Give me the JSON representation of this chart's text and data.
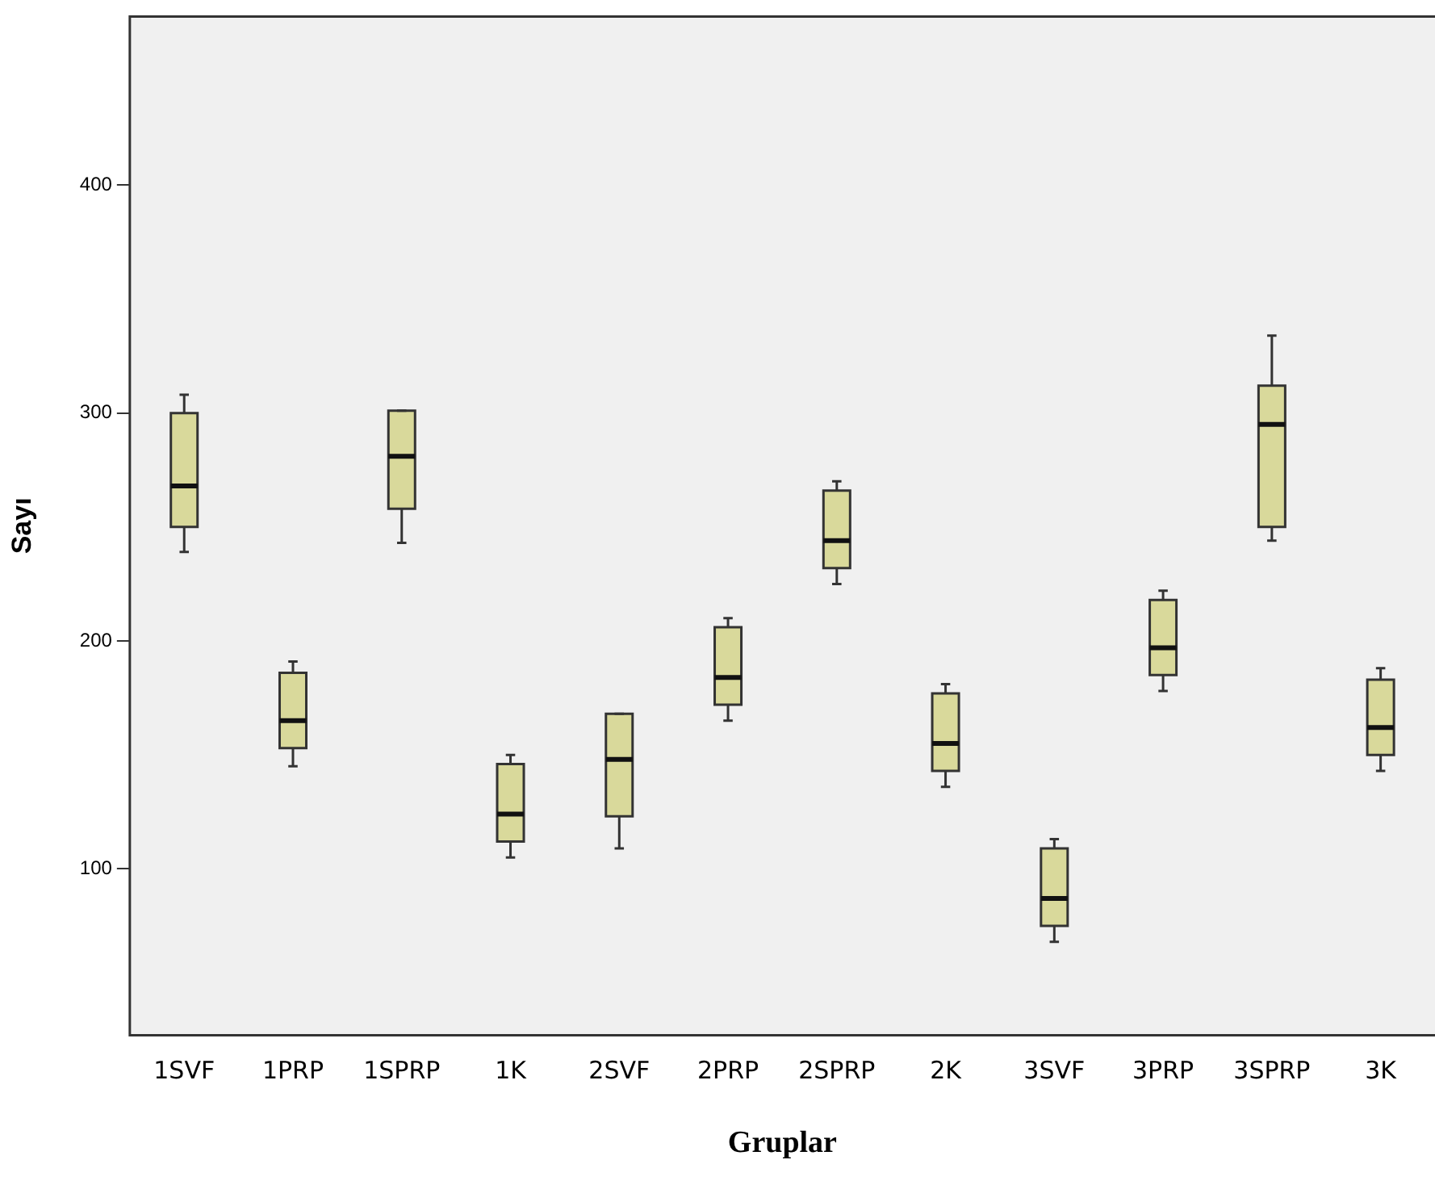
{
  "chart_data": {
    "type": "box",
    "xlabel": "Gruplar",
    "ylabel": "Sayı",
    "categories": [
      "1SVF",
      "1PRP",
      "1SPRP",
      "1K",
      "2SVF",
      "2PRP",
      "2SPRP",
      "2K",
      "3SVF",
      "3PRP",
      "3SPRP",
      "3K"
    ],
    "series": [
      {
        "color": "#d9d99b",
        "boxes": [
          {
            "low": 239,
            "q1": 250,
            "median": 268,
            "q3": 300,
            "high": 308
          },
          {
            "low": 145,
            "q1": 153,
            "median": 165,
            "q3": 186,
            "high": 191
          },
          {
            "low": 243,
            "q1": 258,
            "median": 281,
            "q3": 301,
            "high": 301
          },
          {
            "low": 105,
            "q1": 112,
            "median": 124,
            "q3": 146,
            "high": 150
          },
          {
            "low": 109,
            "q1": 123,
            "median": 148,
            "q3": 168,
            "high": 168
          },
          {
            "low": 165,
            "q1": 172,
            "median": 184,
            "q3": 206,
            "high": 210
          },
          {
            "low": 225,
            "q1": 232,
            "median": 244,
            "q3": 266,
            "high": 270
          },
          {
            "low": 136,
            "q1": 143,
            "median": 155,
            "q3": 177,
            "high": 181
          },
          {
            "low": 68,
            "q1": 75,
            "median": 87,
            "q3": 109,
            "high": 113
          },
          {
            "low": 178,
            "q1": 185,
            "median": 197,
            "q3": 218,
            "high": 222
          },
          {
            "low": 244,
            "q1": 250,
            "median": 295,
            "q3": 312,
            "high": 334
          },
          {
            "low": 143,
            "q1": 150,
            "median": 162,
            "q3": 183,
            "high": 188
          }
        ]
      }
    ],
    "ylim": [
      27,
      474
    ],
    "yticks": [
      100,
      200,
      300,
      400
    ],
    "grid": false,
    "legend": false
  }
}
